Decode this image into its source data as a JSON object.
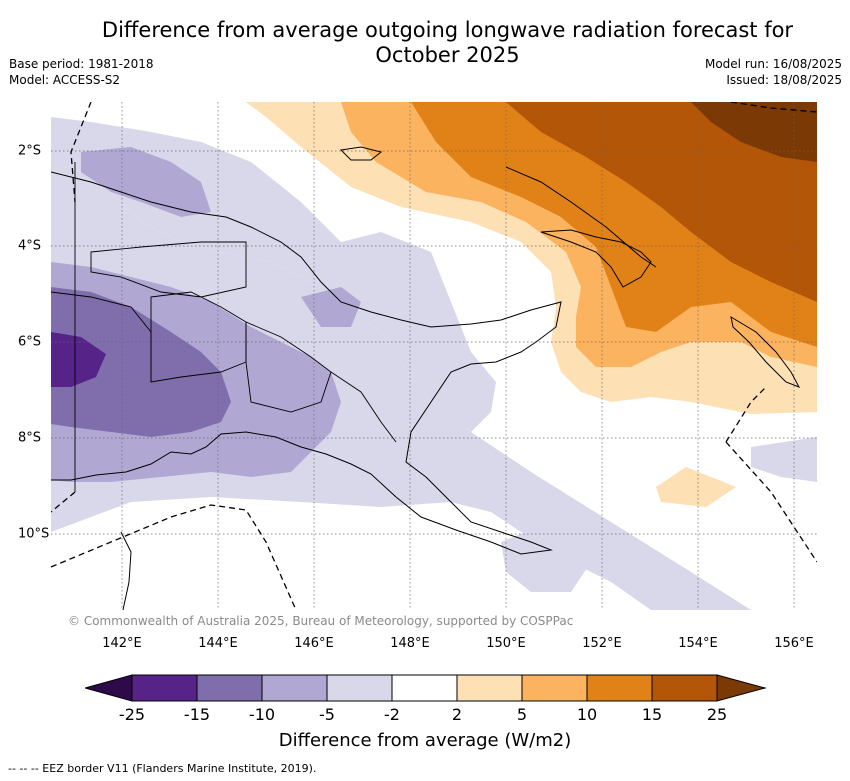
{
  "title": "Difference from average outgoing longwave radiation forecast for October 2025",
  "meta": {
    "base_period": "Base period: 1981-2018",
    "model": "Model: ACCESS-S2",
    "model_run": "Model run: 16/08/2025",
    "issued": "Issued: 18/08/2025"
  },
  "map": {
    "lon_ticks": [
      "142°E",
      "144°E",
      "146°E",
      "148°E",
      "150°E",
      "152°E",
      "154°E",
      "156°E"
    ],
    "lat_ticks": [
      "2°S",
      "4°S",
      "6°S",
      "8°S",
      "10°S"
    ],
    "copyright": "© Commonwealth of Australia 2025, Bureau of Meteorology, supported by COSPPac"
  },
  "colorbar": {
    "tick_labels": [
      "-25",
      "-15",
      "-10",
      "-5",
      "-2",
      "2",
      "5",
      "10",
      "15",
      "25"
    ],
    "colors": [
      "#2e0a4a",
      "#562488",
      "#7f6eab",
      "#b0a8d3",
      "#d8d8ea",
      "#ffffff",
      "#fde0b4",
      "#fbb35f",
      "#e08217",
      "#b35607",
      "#7a3905"
    ],
    "label": "Difference from average (W/m2)"
  },
  "legend": {
    "eez": "-- -- -- EEZ border V11 (Flanders Marine Institute, 2019)."
  }
}
